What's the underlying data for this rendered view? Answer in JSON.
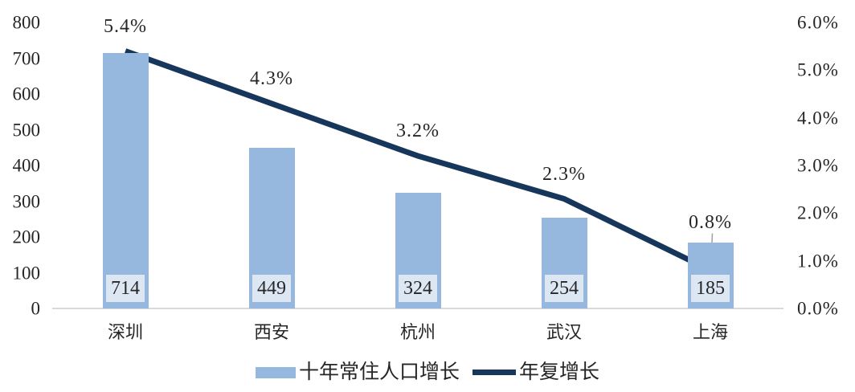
{
  "chart_data": {
    "type": "combo-bar-line",
    "title": "",
    "categories": [
      "深圳",
      "西安",
      "杭州",
      "武汉",
      "上海"
    ],
    "series": [
      {
        "name": "十年常住人口增长",
        "type": "bar",
        "axis": "left",
        "values": [
          714,
          449,
          324,
          254,
          185
        ],
        "value_labels": [
          "714",
          "449",
          "324",
          "254",
          "185"
        ]
      },
      {
        "name": "年复增长",
        "type": "line",
        "axis": "right",
        "values_pct": [
          5.4,
          4.3,
          3.2,
          2.3,
          0.8
        ],
        "point_labels": [
          "5.4%",
          "4.3%",
          "3.2%",
          "2.3%",
          "0.8%"
        ],
        "last_label_has_leader": true
      }
    ],
    "left_axis": {
      "min": 0,
      "max": 800,
      "step": 100,
      "ticks": [
        "0",
        "100",
        "200",
        "300",
        "400",
        "500",
        "600",
        "700",
        "800"
      ]
    },
    "right_axis": {
      "min": 0,
      "max": 6,
      "step": 1,
      "ticks": [
        "0.0%",
        "1.0%",
        "2.0%",
        "3.0%",
        "4.0%",
        "5.0%",
        "6.0%"
      ]
    },
    "grid": false,
    "legend_position": "bottom"
  },
  "colors": {
    "bar": "#97B8DE",
    "bar_value_label_bg": "#DCE7F3",
    "line": "#16365C",
    "axis_line": "#D9D9D9",
    "leader_line": "#A6A6A6",
    "text": "#262626"
  }
}
